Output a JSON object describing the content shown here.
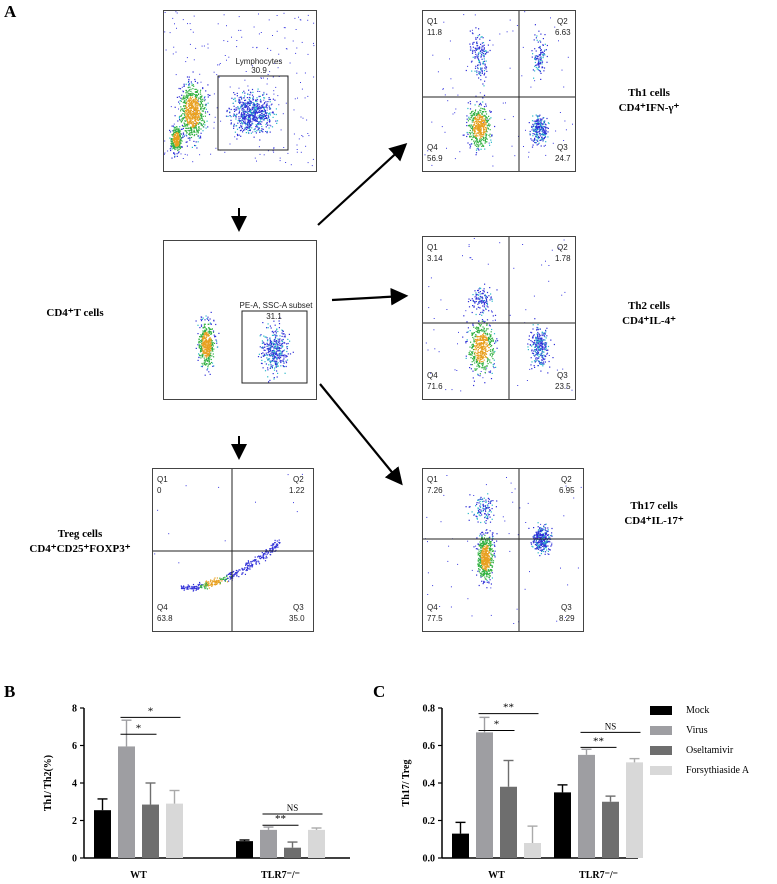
{
  "panel_labels": {
    "a": "A",
    "b": "B",
    "c": "C"
  },
  "cell_labels": {
    "cd4": "CD4⁺T cells",
    "th1_name": "Th1 cells",
    "th1_marker": "CD4⁺IFN-γ⁺",
    "th2_name": "Th2 cells",
    "th2_marker": "CD4⁺IL-4⁺",
    "th17_name": "Th17 cells",
    "th17_marker": "CD4⁺IL-17⁺",
    "treg_name": "Treg cells",
    "treg_marker": "CD4⁺CD25⁺FOXP3⁺"
  },
  "gates": {
    "lymphocytes": {
      "name": "Lymphocytes",
      "value": "30.9"
    },
    "subset": {
      "name": "PE-A, SSC-A subset",
      "value": "31.1"
    }
  },
  "quadrants": {
    "th1": {
      "q1_label": "Q1",
      "q1": "11.8",
      "q2_label": "Q2",
      "q2": "6.63",
      "q3_label": "Q3",
      "q3": "24.7",
      "q4_label": "Q4",
      "q4": "56.9"
    },
    "th2": {
      "q1_label": "Q1",
      "q1": "3.14",
      "q2_label": "Q2",
      "q2": "1.78",
      "q3_label": "Q3",
      "q3": "23.5",
      "q4_label": "Q4",
      "q4": "71.6"
    },
    "treg": {
      "q1_label": "Q1",
      "q1": "0",
      "q2_label": "Q2",
      "q2": "1.22",
      "q3_label": "Q3",
      "q3": "35.0",
      "q4_label": "Q4",
      "q4": "63.8"
    },
    "th17": {
      "q1_label": "Q1",
      "q1": "7.26",
      "q2_label": "Q2",
      "q2": "6.95",
      "q3_label": "Q3",
      "q3": "8.29",
      "q4_label": "Q4",
      "q4": "77.5"
    }
  },
  "legend": {
    "items": [
      {
        "name": "Mock",
        "color": "#000000"
      },
      {
        "name": "Virus",
        "color": "#9e9ea2"
      },
      {
        "name": "Oseltamivir",
        "color": "#6e6e6e"
      },
      {
        "name": "Forsythiaside A",
        "color": "#d8d8d8"
      }
    ]
  },
  "chart_data": [
    {
      "type": "bar",
      "title": "",
      "xlabel": "",
      "ylabel": "Th1/ Th2(%)",
      "ylim": [
        0,
        8
      ],
      "yticks": [
        "0",
        "2",
        "4",
        "6",
        "8"
      ],
      "categories": [
        "WT",
        "TLR7⁻/⁻"
      ],
      "series": [
        {
          "name": "Mock",
          "values": [
            2.55,
            0.9
          ],
          "errors": [
            0.6,
            0.06
          ]
        },
        {
          "name": "Virus",
          "values": [
            5.95,
            1.5
          ],
          "errors": [
            1.4,
            0.15
          ]
        },
        {
          "name": "Oseltamivir",
          "values": [
            2.85,
            0.55
          ],
          "errors": [
            1.15,
            0.3
          ]
        },
        {
          "name": "Forsythiaside A",
          "values": [
            2.9,
            1.5
          ],
          "errors": [
            0.7,
            0.1
          ]
        }
      ],
      "annotations": [
        {
          "text": "*",
          "group": 0,
          "from": 1,
          "to": 2,
          "y": 6.6
        },
        {
          "text": "*",
          "group": 0,
          "from": 1,
          "to": 3,
          "y": 7.5
        },
        {
          "text": "**",
          "group": 1,
          "from": 1,
          "to": 2,
          "y": 1.75
        },
        {
          "text": "NS",
          "group": 1,
          "from": 1,
          "to": 3,
          "y": 2.35
        }
      ]
    },
    {
      "type": "bar",
      "title": "",
      "xlabel": "",
      "ylabel": "Th17/ Treg",
      "ylim": [
        0,
        0.8
      ],
      "yticks": [
        "0.0",
        "0.2",
        "0.4",
        "0.6",
        "0.8"
      ],
      "categories": [
        "WT",
        "TLR7⁻/⁻"
      ],
      "series": [
        {
          "name": "Mock",
          "values": [
            0.13,
            0.35
          ],
          "errors": [
            0.06,
            0.04
          ]
        },
        {
          "name": "Virus",
          "values": [
            0.67,
            0.55
          ],
          "errors": [
            0.08,
            0.03
          ]
        },
        {
          "name": "Oseltamivir",
          "values": [
            0.38,
            0.3
          ],
          "errors": [
            0.14,
            0.03
          ]
        },
        {
          "name": "Forsythiaside A",
          "values": [
            0.08,
            0.51
          ],
          "errors": [
            0.09,
            0.02
          ]
        }
      ],
      "annotations": [
        {
          "text": "*",
          "group": 0,
          "from": 1,
          "to": 2,
          "y": 0.68
        },
        {
          "text": "**",
          "group": 0,
          "from": 1,
          "to": 3,
          "y": 0.77
        },
        {
          "text": "**",
          "group": 1,
          "from": 1,
          "to": 2,
          "y": 0.59
        },
        {
          "text": "NS",
          "group": 1,
          "from": 1,
          "to": 3,
          "y": 0.67
        }
      ]
    }
  ]
}
